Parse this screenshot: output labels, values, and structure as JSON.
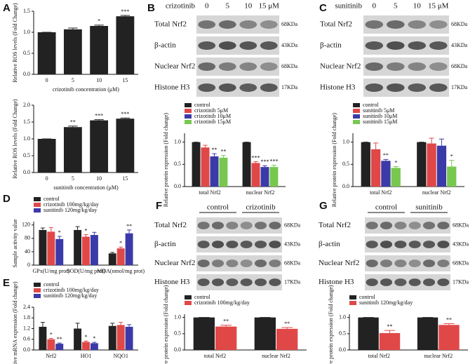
{
  "panels": [
    "A",
    "B",
    "C",
    "D",
    "E",
    "F",
    "G"
  ],
  "blots": [
    {
      "header": "crizotinib",
      "lanes": [
        "0",
        "5",
        "10",
        "15 μM"
      ],
      "rows": [
        {
          "label": "Total Nrf2",
          "size": "68KDa"
        },
        {
          "label": "β-actin",
          "size": "43KDa"
        },
        {
          "label": "Nuclear Nrf2",
          "size": "68KDa"
        },
        {
          "label": "Histone H3",
          "size": "17KDa"
        }
      ]
    },
    {
      "header": "sunitinib",
      "lanes": [
        "0",
        "5",
        "10",
        "15 μM"
      ],
      "rows": [
        {
          "label": "Total Nrf2",
          "size": "68KDa"
        },
        {
          "label": "β-actin",
          "size": "43KDa"
        },
        {
          "label": "Nuclear Nrf2",
          "size": "68KDa"
        },
        {
          "label": "Histone H3",
          "size": "17KDa"
        }
      ]
    },
    {
      "groups": [
        "control",
        "crizotinib"
      ],
      "rows": [
        {
          "label": "Total Nrf2",
          "size": "68KDa"
        },
        {
          "label": "β-actin",
          "size": "43KDa"
        },
        {
          "label": "Nuclear Nrf2",
          "size": "68KDa"
        },
        {
          "label": "Histone H3",
          "size": "17KDa"
        }
      ]
    },
    {
      "groups": [
        "control",
        "sunitinib"
      ],
      "rows": [
        {
          "label": "Total Nrf2",
          "size": "68KDa"
        },
        {
          "label": "β-actin",
          "size": "43KDa"
        },
        {
          "label": "Nuclear Nrf2",
          "size": "68KDa"
        },
        {
          "label": "Histone H3",
          "size": "17KDa"
        }
      ]
    }
  ],
  "chart_data": [
    {
      "type": "bar",
      "x_label": "crizotinib  concentration (μM)",
      "y_label": "Relative ROS levels (Fold Change)",
      "categories": [
        "0",
        "5",
        "10",
        "15"
      ],
      "series": [
        {
          "color": "#222222",
          "values": [
            1.0,
            1.07,
            1.15,
            1.38
          ],
          "errors": [
            0,
            0.03,
            0.02,
            0.02
          ],
          "annotations": [
            null,
            null,
            "*",
            "***"
          ]
        }
      ],
      "ylim": [
        0,
        1.5
      ],
      "yticks": [
        {
          "value": 0,
          "label": "0.0"
        },
        {
          "value": 0.5,
          "label": "0.5"
        },
        {
          "value": 1,
          "label": "1.0"
        },
        {
          "value": 1.5,
          "label": "1.5"
        }
      ]
    },
    {
      "type": "bar",
      "x_label": "sunitinib  concentration (μM)",
      "y_label": "Relative ROS levels (Fold Change)",
      "categories": [
        "0",
        "5",
        "10",
        "15"
      ],
      "series": [
        {
          "color": "#222222",
          "values": [
            1.0,
            1.35,
            1.55,
            1.6
          ],
          "errors": [
            0,
            0.03,
            0.02,
            0.02
          ],
          "annotations": [
            null,
            "**",
            "***",
            "***"
          ]
        }
      ],
      "ylim": [
        0,
        2
      ],
      "yticks": [
        {
          "value": 0,
          "label": "0.0"
        },
        {
          "value": 0.5,
          "label": "0.5"
        },
        {
          "value": 1,
          "label": "1.0"
        },
        {
          "value": 1.5,
          "label": "1.5"
        },
        {
          "value": 2,
          "label": "2.0"
        }
      ]
    },
    {
      "type": "bar",
      "y_label": "Relative protein expression (Fold change)",
      "categories": [
        "total Nrf2",
        "nuclear Nrf2"
      ],
      "series": [
        {
          "name": "control",
          "color": "#222222",
          "values": [
            1.0,
            1.0
          ],
          "errors": [
            0,
            0
          ],
          "annotations": [
            null,
            null
          ]
        },
        {
          "name": "crizotinib 5μM",
          "color": "#e04848",
          "values": [
            0.88,
            0.53
          ],
          "errors": [
            0.05,
            0.03
          ],
          "annotations": [
            null,
            "***"
          ]
        },
        {
          "name": "crizotinib 10μM",
          "color": "#3a3aa8",
          "values": [
            0.68,
            0.44
          ],
          "errors": [
            0.06,
            0.03
          ],
          "annotations": [
            "**",
            "***"
          ]
        },
        {
          "name": "crizotinib 15μM",
          "color": "#78c850",
          "values": [
            0.65,
            0.44
          ],
          "errors": [
            0.05,
            0.04
          ],
          "annotations": [
            "**",
            "***"
          ]
        }
      ],
      "ylim": [
        0,
        1.2
      ],
      "yticks": [
        {
          "value": 0,
          "label": "0.0"
        },
        {
          "value": 0.5,
          "label": "0.5"
        },
        {
          "value": 1,
          "label": "1.0"
        }
      ]
    },
    {
      "type": "bar",
      "y_label": "Relative protein expression (Fold change)",
      "categories": [
        "total Nrf2",
        "nuclear Nrf2"
      ],
      "series": [
        {
          "name": "control",
          "color": "#222222",
          "values": [
            1.0,
            1.0
          ],
          "errors": [
            0,
            0
          ],
          "annotations": [
            null,
            null
          ]
        },
        {
          "name": "sunitinib 5μM",
          "color": "#e04848",
          "values": [
            0.84,
            0.97
          ],
          "errors": [
            0.14,
            0.12
          ],
          "annotations": [
            null,
            null
          ]
        },
        {
          "name": "sunitinib 10μM",
          "color": "#3a3aa8",
          "values": [
            0.58,
            0.92
          ],
          "errors": [
            0.03,
            0.15
          ],
          "annotations": [
            "**",
            null
          ]
        },
        {
          "name": "sunitinib 15μM",
          "color": "#78c850",
          "values": [
            0.42,
            0.45
          ],
          "errors": [
            0.03,
            0.14
          ],
          "annotations": [
            "*",
            "*"
          ]
        }
      ],
      "ylim": [
        0,
        1.2
      ],
      "yticks": [
        {
          "value": 0,
          "label": "0.0"
        },
        {
          "value": 0.5,
          "label": "0.5"
        },
        {
          "value": 1,
          "label": "1.0"
        }
      ]
    },
    {
      "type": "bar",
      "y_label": "Sample activity value",
      "categories": [
        "GPx(U/mg prot)",
        "SOD(U/mg prot)",
        "MDA(nmol/mg prot)"
      ],
      "series": [
        {
          "name": "control",
          "color": "#222222",
          "values": [
            105,
            105,
            35
          ],
          "errors": [
            6,
            10,
            3
          ],
          "annotations": [
            null,
            null,
            null
          ]
        },
        {
          "name": "crizotinib 100mg/kg/day",
          "color": "#e04848",
          "values": [
            100,
            85,
            50
          ],
          "errors": [
            12,
            6,
            4
          ],
          "annotations": [
            null,
            "*",
            "*"
          ]
        },
        {
          "name": "sunitinib 120mg/kg/day",
          "color": "#3a3aa8",
          "values": [
            78,
            90,
            95
          ],
          "errors": [
            8,
            8,
            10
          ],
          "annotations": [
            "*",
            null,
            "**"
          ]
        }
      ],
      "ylim": [
        0,
        130
      ],
      "yticks": [
        0,
        40,
        80,
        120
      ]
    },
    {
      "type": "bar",
      "y_label": "Relative mRNA expression (Fold change)",
      "categories": [
        "Nrf2",
        "HO1",
        "NQO1"
      ],
      "series": [
        {
          "name": "control",
          "color": "#222222",
          "values": [
            1.3,
            1.2,
            1.35
          ],
          "errors": [
            0.25,
            0.3,
            0.15
          ],
          "annotations": [
            null,
            null,
            null
          ]
        },
        {
          "name": "crizotinib 100mg/kg/day",
          "color": "#e04848",
          "values": [
            0.6,
            0.45,
            1.4
          ],
          "errors": [
            0.05,
            0.05,
            0.15
          ],
          "annotations": [
            "*",
            "*",
            null
          ]
        },
        {
          "name": "sunitinib 120mg/kg/day",
          "color": "#3a3aa8",
          "values": [
            0.35,
            0.38,
            1.3
          ],
          "errors": [
            0.04,
            0.05,
            0.12
          ],
          "annotations": [
            "**",
            "*",
            null
          ]
        }
      ],
      "ylim": [
        0,
        2.4
      ],
      "yticks": [
        {
          "value": 0,
          "label": "0.0"
        },
        {
          "value": 0.6,
          "label": "0.6"
        },
        {
          "value": 1.2,
          "label": "1.2"
        },
        {
          "value": 1.8,
          "label": "1.8"
        },
        {
          "value": 2.4,
          "label": "2.4"
        }
      ]
    },
    {
      "type": "bar",
      "y_label": "Relative protein expression (Fold change)",
      "categories": [
        "total Nrf2",
        "nuclear Nrf2"
      ],
      "series": [
        {
          "name": "control",
          "color": "#222222",
          "values": [
            1.0,
            1.0
          ],
          "errors": [
            0,
            0
          ],
          "annotations": [
            null,
            null
          ]
        },
        {
          "name": "crizotinib 100mg/kg/day",
          "color": "#e04848",
          "values": [
            0.72,
            0.65
          ],
          "errors": [
            0.04,
            0.04
          ],
          "annotations": [
            "**",
            "**"
          ]
        }
      ],
      "ylim": [
        0,
        1.1
      ],
      "yticks": [
        {
          "value": 0,
          "label": "0.0"
        },
        {
          "value": 0.5,
          "label": "0.5"
        },
        {
          "value": 1,
          "label": "1.0"
        }
      ]
    },
    {
      "type": "bar",
      "y_label": "Relative protein expression (Fold change)",
      "categories": [
        "total Nrf2",
        "nuclear Nrf2"
      ],
      "series": [
        {
          "name": "control",
          "color": "#222222",
          "values": [
            1.0,
            1.0
          ],
          "errors": [
            0,
            0
          ],
          "annotations": [
            null,
            null
          ]
        },
        {
          "name": "sunitinib 120mg/kg/day",
          "color": "#e04848",
          "values": [
            0.52,
            0.77
          ],
          "errors": [
            0.08,
            0.04
          ],
          "annotations": [
            "**",
            "**"
          ]
        }
      ],
      "ylim": [
        0,
        1.1
      ],
      "yticks": [
        {
          "value": 0,
          "label": "0.0"
        },
        {
          "value": 0.5,
          "label": "0.5"
        },
        {
          "value": 1,
          "label": "1.0"
        }
      ]
    }
  ]
}
